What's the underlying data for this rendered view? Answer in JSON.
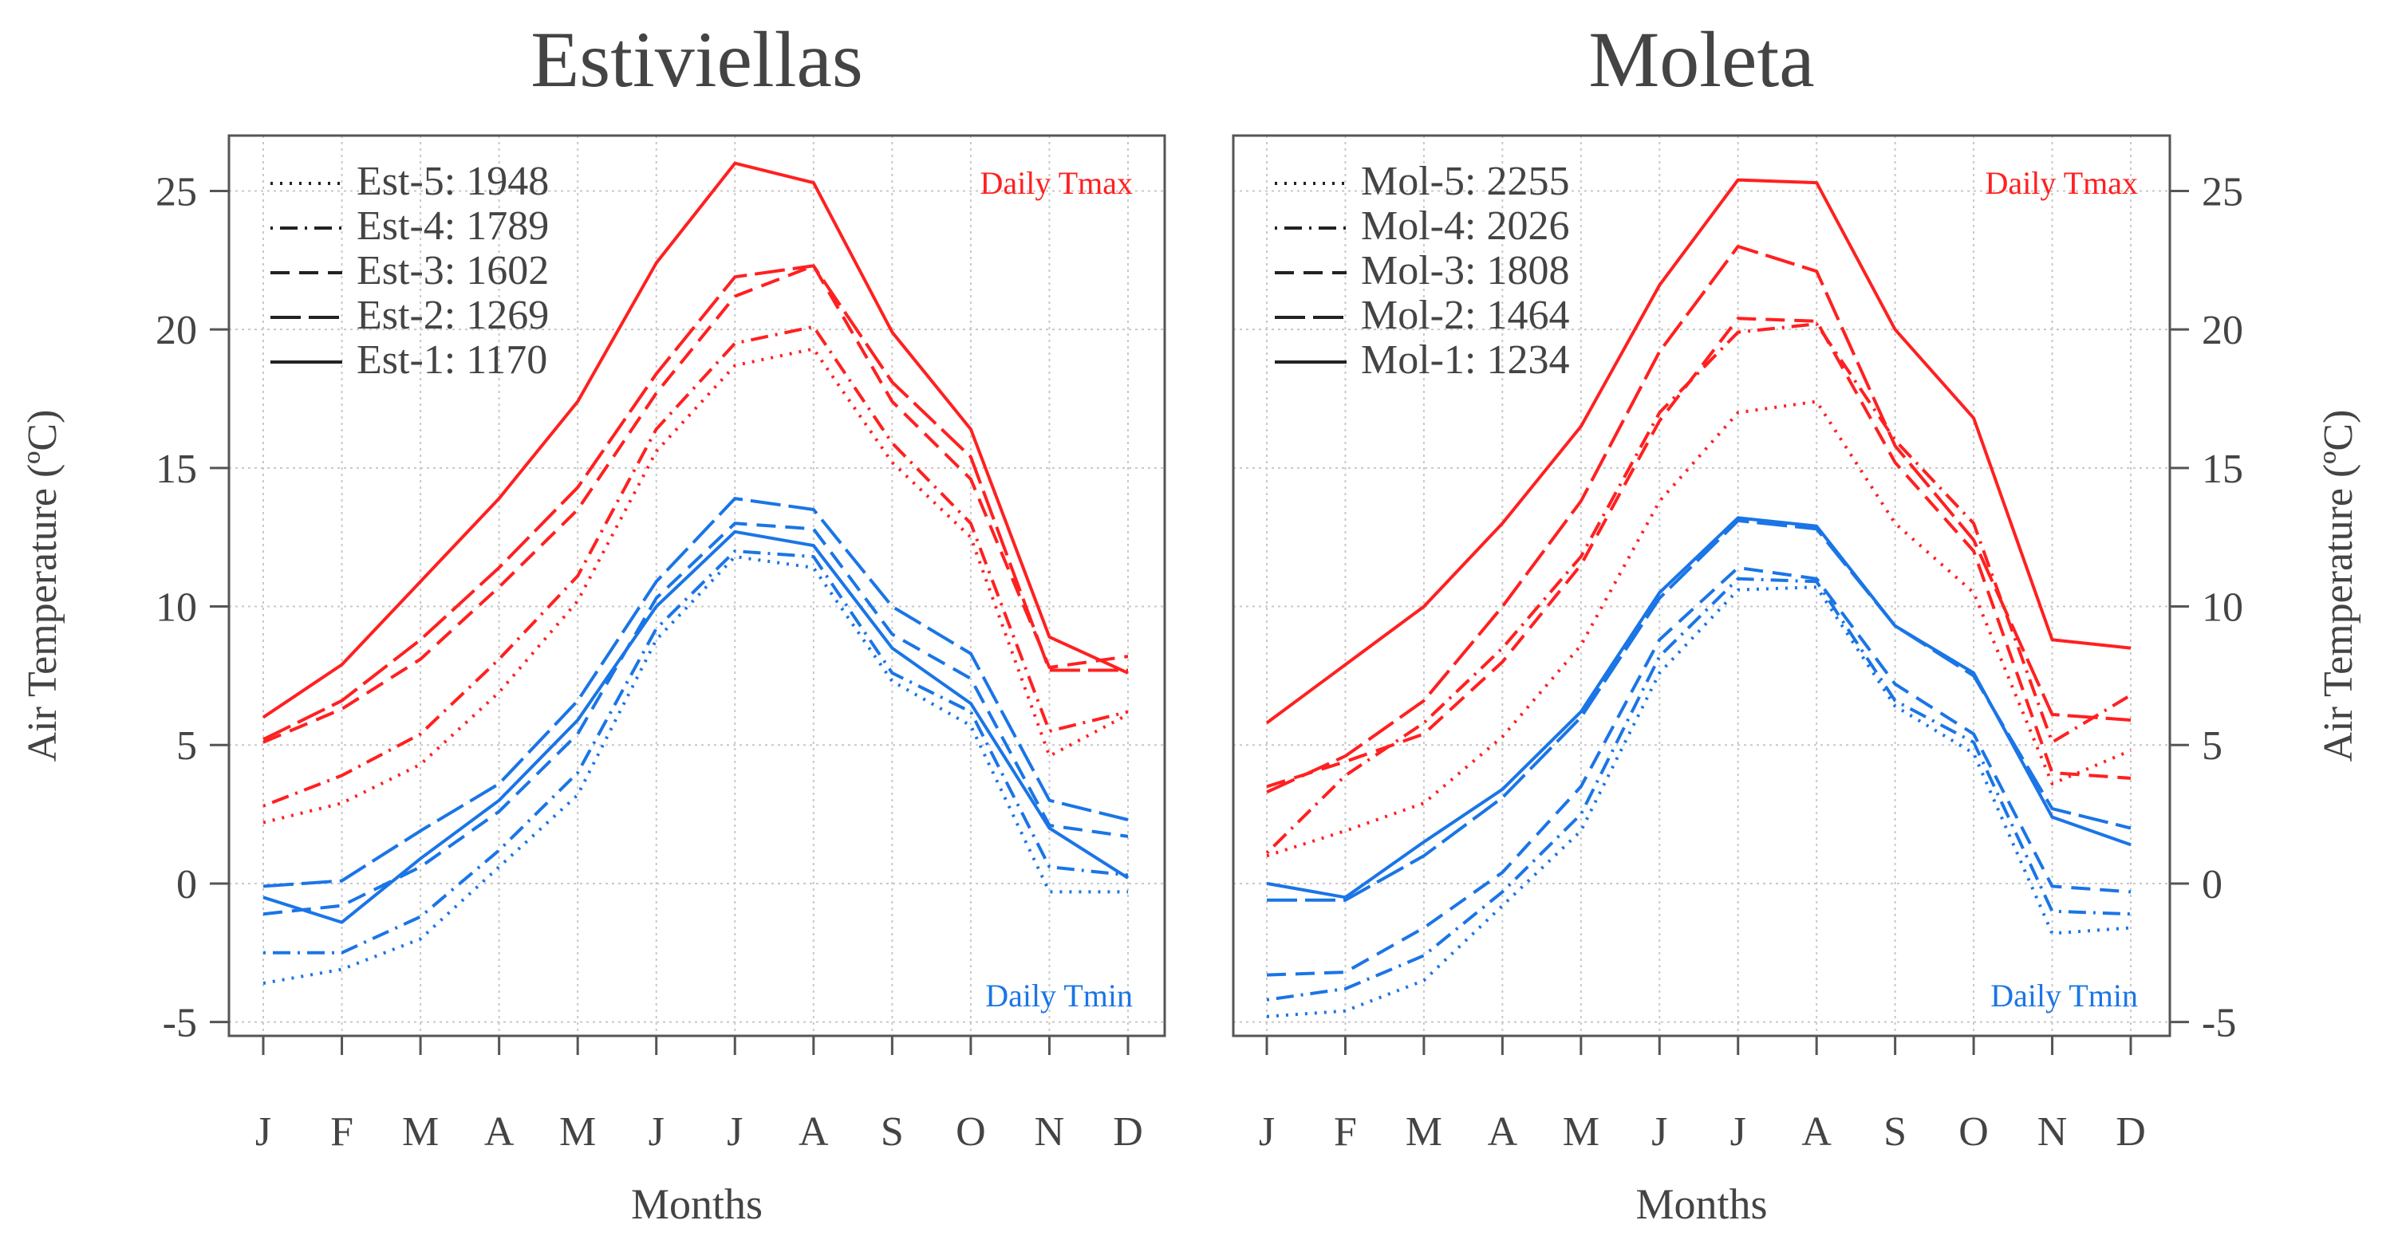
{
  "colors": {
    "tmax": "#ff2020",
    "tmin": "#1a75e6",
    "axis": "#555555",
    "grid": "#c8c8c8",
    "text": "#444444"
  },
  "shared": {
    "xlabel": "Months",
    "ylabel": "Air Temperature (ºC)",
    "months": [
      "J",
      "F",
      "M",
      "A",
      "M",
      "J",
      "J",
      "A",
      "S",
      "O",
      "N",
      "D"
    ],
    "yticks": [
      -5,
      0,
      5,
      10,
      15,
      20,
      25
    ],
    "ylim": [
      -5.5,
      27
    ],
    "tmax_label": "Daily Tmax",
    "tmin_label": "Daily Tmin"
  },
  "chart_data": [
    {
      "type": "line",
      "title": "Estiviellas",
      "xlabel": "Months",
      "ylabel": "Air Temperature (ºC)",
      "categories": [
        "J",
        "F",
        "M",
        "A",
        "M",
        "J",
        "J",
        "A",
        "S",
        "O",
        "N",
        "D"
      ],
      "ylim": [
        -5.5,
        27
      ],
      "grid": true,
      "legend": [
        {
          "label": "Est-5: 1948",
          "style": "dotted"
        },
        {
          "label": "Est-4: 1789",
          "style": "dotdash"
        },
        {
          "label": "Est-3: 1602",
          "style": "dashed"
        },
        {
          "label": "Est-2: 1269",
          "style": "longdash"
        },
        {
          "label": "Est-1: 1170",
          "style": "solid"
        }
      ],
      "series": [
        {
          "name": "Est-1: 1170 Tmax",
          "group": "tmax",
          "style": "solid",
          "values": [
            6.0,
            7.9,
            10.9,
            13.9,
            17.4,
            22.4,
            26.0,
            25.3,
            19.9,
            16.4,
            8.9,
            7.6
          ]
        },
        {
          "name": "Est-2: 1269 Tmax",
          "group": "tmax",
          "style": "longdash",
          "values": [
            5.2,
            6.6,
            8.8,
            11.4,
            14.3,
            18.4,
            21.9,
            22.3,
            18.1,
            15.4,
            7.7,
            7.7
          ]
        },
        {
          "name": "Est-3: 1602 Tmax",
          "group": "tmax",
          "style": "dashed",
          "values": [
            5.1,
            6.3,
            8.1,
            10.7,
            13.5,
            17.7,
            21.2,
            22.3,
            17.4,
            14.6,
            7.8,
            8.2
          ]
        },
        {
          "name": "Est-4: 1789 Tmax",
          "group": "tmax",
          "style": "dotdash",
          "values": [
            2.8,
            3.9,
            5.4,
            8.1,
            11.1,
            16.4,
            19.5,
            20.1,
            15.9,
            13.0,
            5.5,
            6.2
          ]
        },
        {
          "name": "Est-5: 1948 Tmax",
          "group": "tmax",
          "style": "dotted",
          "values": [
            2.2,
            2.9,
            4.3,
            6.9,
            10.2,
            15.6,
            18.7,
            19.3,
            15.2,
            12.5,
            4.6,
            6.1
          ]
        },
        {
          "name": "Est-1: 1170 Tmin",
          "group": "tmin",
          "style": "solid",
          "values": [
            -0.5,
            -1.4,
            0.9,
            3.0,
            5.9,
            10.0,
            12.7,
            12.2,
            8.5,
            6.5,
            2.0,
            0.2
          ]
        },
        {
          "name": "Est-2: 1269 Tmin",
          "group": "tmin",
          "style": "longdash",
          "values": [
            -0.1,
            0.1,
            1.9,
            3.6,
            6.6,
            10.9,
            13.9,
            13.5,
            10.0,
            8.3,
            3.0,
            2.3
          ]
        },
        {
          "name": "Est-3: 1602 Tmin",
          "group": "tmin",
          "style": "dashed",
          "values": [
            -1.1,
            -0.8,
            0.6,
            2.6,
            5.4,
            10.3,
            13.0,
            12.8,
            9.0,
            7.4,
            2.1,
            1.7
          ]
        },
        {
          "name": "Est-4: 1789 Tmin",
          "group": "tmin",
          "style": "dotdash",
          "values": [
            -2.5,
            -2.5,
            -1.2,
            1.2,
            4.0,
            9.2,
            12.0,
            11.8,
            7.6,
            6.2,
            0.6,
            0.3
          ]
        },
        {
          "name": "Est-5: 1948 Tmin",
          "group": "tmin",
          "style": "dotted",
          "values": [
            -3.6,
            -3.1,
            -2.0,
            0.6,
            3.2,
            8.8,
            11.8,
            11.4,
            7.3,
            5.7,
            -0.3,
            -0.3
          ]
        }
      ]
    },
    {
      "type": "line",
      "title": "Moleta",
      "xlabel": "Months",
      "ylabel": "Air Temperature (ºC)",
      "categories": [
        "J",
        "F",
        "M",
        "A",
        "M",
        "J",
        "J",
        "A",
        "S",
        "O",
        "N",
        "D"
      ],
      "ylim": [
        -5.5,
        27
      ],
      "grid": true,
      "legend": [
        {
          "label": "Mol-5: 2255",
          "style": "dotted"
        },
        {
          "label": "Mol-4: 2026",
          "style": "dotdash"
        },
        {
          "label": "Mol-3: 1808",
          "style": "dashed"
        },
        {
          "label": "Mol-2: 1464",
          "style": "longdash"
        },
        {
          "label": "Mol-1: 1234",
          "style": "solid"
        }
      ],
      "series": [
        {
          "name": "Mol-1: 1234 Tmax",
          "group": "tmax",
          "style": "solid",
          "values": [
            5.8,
            7.9,
            10.0,
            13.0,
            16.5,
            21.6,
            25.4,
            25.3,
            20.0,
            16.8,
            8.8,
            8.5
          ]
        },
        {
          "name": "Mol-2: 1464 Tmax",
          "group": "tmax",
          "style": "longdash",
          "values": [
            3.3,
            4.6,
            6.6,
            10.0,
            13.8,
            19.2,
            23.0,
            22.1,
            15.8,
            12.4,
            6.1,
            5.9
          ]
        },
        {
          "name": "Mol-3: 1808 Tmax",
          "group": "tmax",
          "style": "dashed",
          "values": [
            3.5,
            4.4,
            5.4,
            8.0,
            11.5,
            16.7,
            20.4,
            20.3,
            15.2,
            12.0,
            4.0,
            3.8
          ]
        },
        {
          "name": "Mol-4: 2026 Tmax",
          "group": "tmax",
          "style": "dotdash",
          "values": [
            1.1,
            3.9,
            5.8,
            8.5,
            11.8,
            17.0,
            19.9,
            20.2,
            16.0,
            13.0,
            5.1,
            6.8
          ]
        },
        {
          "name": "Mol-5: 2255 Tmax",
          "group": "tmax",
          "style": "dotted",
          "values": [
            1.0,
            1.9,
            2.9,
            5.3,
            8.6,
            13.8,
            17.0,
            17.4,
            13.0,
            10.5,
            3.6,
            4.8
          ]
        },
        {
          "name": "Mol-1: 1234 Tmin",
          "group": "tmin",
          "style": "solid",
          "values": [
            0.0,
            -0.5,
            1.5,
            3.4,
            6.2,
            10.5,
            13.2,
            12.9,
            9.3,
            7.6,
            2.4,
            1.4
          ]
        },
        {
          "name": "Mol-2: 1464 Tmin",
          "group": "tmin",
          "style": "longdash",
          "values": [
            -0.6,
            -0.6,
            1.0,
            3.1,
            6.0,
            10.3,
            13.1,
            12.8,
            9.3,
            7.5,
            2.7,
            2.0
          ]
        },
        {
          "name": "Mol-3: 1808 Tmin",
          "group": "tmin",
          "style": "dashed",
          "values": [
            -3.3,
            -3.2,
            -1.6,
            0.4,
            3.5,
            8.8,
            11.4,
            11.0,
            7.2,
            5.4,
            -0.1,
            -0.3
          ]
        },
        {
          "name": "Mol-4: 2026 Tmin",
          "group": "tmin",
          "style": "dotdash",
          "values": [
            -4.2,
            -3.8,
            -2.6,
            -0.3,
            2.5,
            8.2,
            11.0,
            10.9,
            6.6,
            5.1,
            -1.0,
            -1.1
          ]
        },
        {
          "name": "Mol-5: 2255 Tmin",
          "group": "tmin",
          "style": "dotted",
          "values": [
            -4.8,
            -4.6,
            -3.5,
            -0.8,
            1.9,
            7.6,
            10.6,
            10.7,
            6.4,
            4.7,
            -1.8,
            -1.6
          ]
        }
      ]
    }
  ]
}
